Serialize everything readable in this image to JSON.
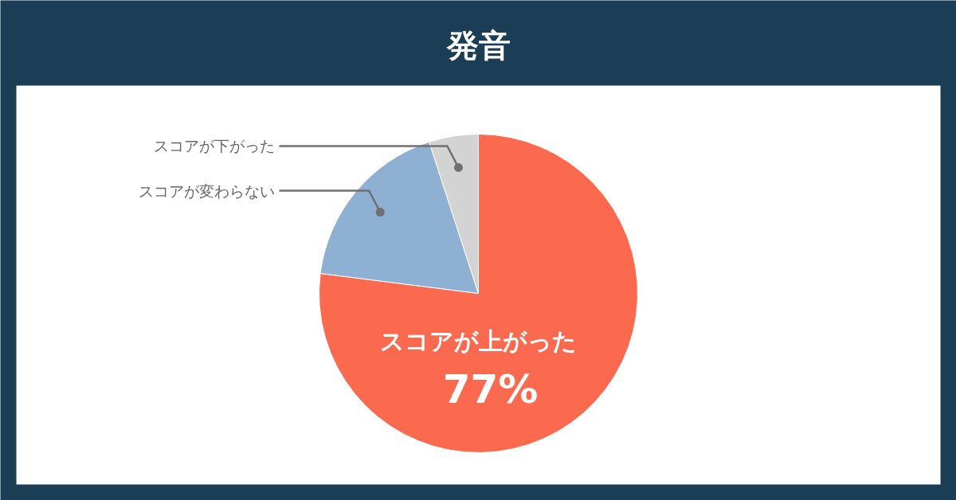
{
  "chart_data": {
    "type": "pie",
    "title": "発音",
    "categories": [
      "スコアが上がった",
      "スコアが変わらない",
      "スコアが下がった"
    ],
    "values": [
      77,
      18,
      5
    ],
    "colors": [
      "#fb6a4f",
      "#8db0d3",
      "#d3d3d3"
    ],
    "value_labels": [
      "77%",
      null,
      null
    ]
  }
}
